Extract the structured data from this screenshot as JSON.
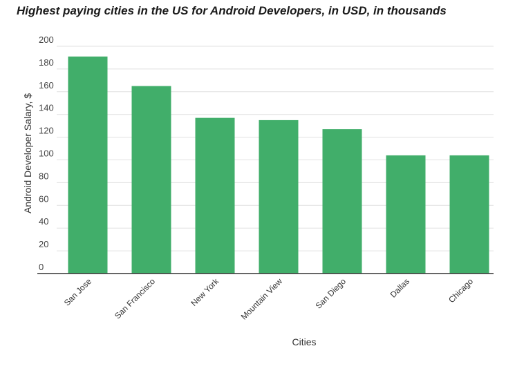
{
  "chart_data": {
    "type": "bar",
    "title": "Highest paying cities in the US for Android Developers, in USD, in thousands",
    "xlabel": "Cities",
    "ylabel": "Android Developer Salary, $",
    "categories": [
      "San Jose",
      "San Francisco",
      "New York",
      "Mountain View",
      "San Diego",
      "Dallas",
      "Chicago"
    ],
    "values": [
      191,
      165,
      137,
      135,
      127,
      104,
      104
    ],
    "ylim": [
      0,
      200
    ],
    "yticks": [
      0,
      20,
      40,
      60,
      80,
      100,
      120,
      140,
      160,
      180,
      200
    ],
    "grid": true,
    "bar_color": "#41ae6a",
    "grid_color": "#e0e0e0",
    "axis_color": "#333333"
  }
}
